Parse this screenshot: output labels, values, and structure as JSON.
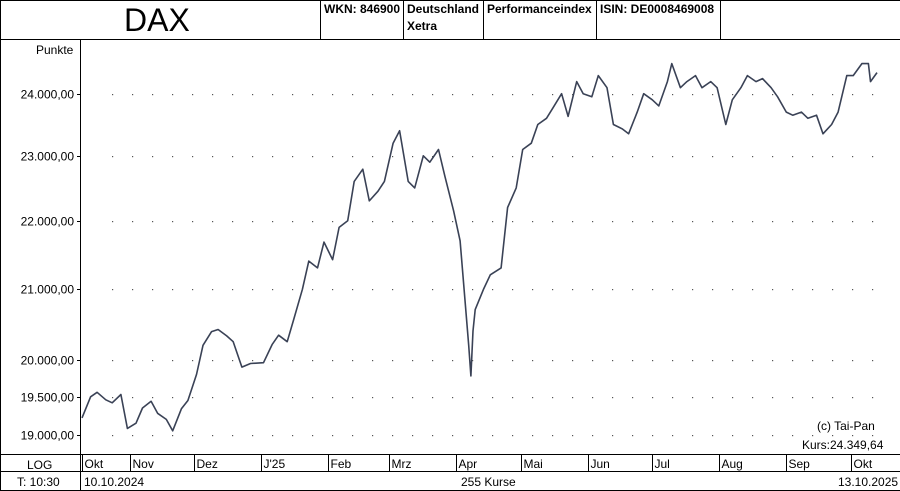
{
  "header": {
    "title": "DAX",
    "wkn": "WKN: 846900",
    "exchange_line1": "Deutschland",
    "exchange_line2": "Xetra",
    "index_type": "Performanceindex",
    "isin": "ISIN: DE0008469008"
  },
  "footer": {
    "scale": "LOG",
    "time": "T: 10:30",
    "start_date": "10.10.2024",
    "count": "255 Kurse",
    "end_date": "13.10.2025"
  },
  "annotations": {
    "copyright": "(c) Tai-Pan",
    "last_price": "Kurs:24.349,64"
  },
  "colors": {
    "line": "#3a4256",
    "grid": "#555555",
    "frame": "#000000"
  },
  "chart_data": {
    "type": "line",
    "title": "DAX",
    "ylabel": "Punkte",
    "yscale": "log",
    "ylim": [
      18750,
      24900
    ],
    "grid": true,
    "y_ticks": [
      19000,
      19500,
      20000,
      21000,
      22000,
      23000,
      24000
    ],
    "y_tick_labels": [
      "19.000,00",
      "19.500,00",
      "20.000,00",
      "21.000,00",
      "22.000,00",
      "23.000,00",
      "24.000,00"
    ],
    "x_start": "2024-10-10",
    "x_end": "2025-10-13",
    "x_ticks": [
      "2024-10-01",
      "2024-11-01",
      "2024-12-01",
      "2025-01-01",
      "2025-02-01",
      "2025-03-01",
      "2025-04-01",
      "2025-05-01",
      "2025-06-01",
      "2025-07-01",
      "2025-08-01",
      "2025-09-01",
      "2025-10-01"
    ],
    "x_tick_labels": [
      "Okt",
      "Nov",
      "Dez",
      "J'25",
      "Feb",
      "Mrz",
      "Apr",
      "Mai",
      "Jun",
      "Jul",
      "Aug",
      "Sep",
      "Okt"
    ],
    "series": [
      {
        "points": [
          [
            "2024-10-10",
            19220
          ],
          [
            "2024-10-14",
            19500
          ],
          [
            "2024-10-17",
            19560
          ],
          [
            "2024-10-21",
            19460
          ],
          [
            "2024-10-24",
            19420
          ],
          [
            "2024-10-28",
            19530
          ],
          [
            "2024-10-31",
            19080
          ],
          [
            "2024-11-04",
            19150
          ],
          [
            "2024-11-07",
            19350
          ],
          [
            "2024-11-11",
            19440
          ],
          [
            "2024-11-14",
            19280
          ],
          [
            "2024-11-18",
            19200
          ],
          [
            "2024-11-21",
            19050
          ],
          [
            "2024-11-25",
            19340
          ],
          [
            "2024-11-28",
            19450
          ],
          [
            "2024-12-02",
            19800
          ],
          [
            "2024-12-05",
            20200
          ],
          [
            "2024-12-09",
            20390
          ],
          [
            "2024-12-12",
            20420
          ],
          [
            "2024-12-16",
            20330
          ],
          [
            "2024-12-19",
            20250
          ],
          [
            "2024-12-23",
            19900
          ],
          [
            "2024-12-27",
            19950
          ],
          [
            "2025-01-02",
            19960
          ],
          [
            "2025-01-06",
            20210
          ],
          [
            "2025-01-09",
            20340
          ],
          [
            "2025-01-13",
            20250
          ],
          [
            "2025-01-16",
            20560
          ],
          [
            "2025-01-20",
            20990
          ],
          [
            "2025-01-23",
            21400
          ],
          [
            "2025-01-27",
            21300
          ],
          [
            "2025-01-30",
            21680
          ],
          [
            "2025-02-03",
            21420
          ],
          [
            "2025-02-06",
            21900
          ],
          [
            "2025-02-10",
            22000
          ],
          [
            "2025-02-13",
            22600
          ],
          [
            "2025-02-17",
            22790
          ],
          [
            "2025-02-20",
            22300
          ],
          [
            "2025-02-24",
            22450
          ],
          [
            "2025-02-27",
            22600
          ],
          [
            "2025-03-03",
            23200
          ],
          [
            "2025-03-06",
            23400
          ],
          [
            "2025-03-10",
            22600
          ],
          [
            "2025-03-13",
            22500
          ],
          [
            "2025-03-17",
            23000
          ],
          [
            "2025-03-20",
            22900
          ],
          [
            "2025-03-24",
            23100
          ],
          [
            "2025-03-27",
            22680
          ],
          [
            "2025-03-31",
            22150
          ],
          [
            "2025-04-03",
            21700
          ],
          [
            "2025-04-07",
            20200
          ],
          [
            "2025-04-08",
            19780
          ],
          [
            "2025-04-09",
            20400
          ],
          [
            "2025-04-10",
            20700
          ],
          [
            "2025-04-14",
            21000
          ],
          [
            "2025-04-17",
            21200
          ],
          [
            "2025-04-22",
            21300
          ],
          [
            "2025-04-25",
            22200
          ],
          [
            "2025-04-29",
            22500
          ],
          [
            "2025-05-02",
            23100
          ],
          [
            "2025-05-06",
            23200
          ],
          [
            "2025-05-09",
            23500
          ],
          [
            "2025-05-13",
            23600
          ],
          [
            "2025-05-16",
            23770
          ],
          [
            "2025-05-20",
            24000
          ],
          [
            "2025-05-23",
            23630
          ],
          [
            "2025-05-27",
            24200
          ],
          [
            "2025-05-30",
            24000
          ],
          [
            "2025-06-03",
            23950
          ],
          [
            "2025-06-06",
            24300
          ],
          [
            "2025-06-10",
            24100
          ],
          [
            "2025-06-13",
            23500
          ],
          [
            "2025-06-17",
            23430
          ],
          [
            "2025-06-20",
            23350
          ],
          [
            "2025-06-24",
            23700
          ],
          [
            "2025-06-27",
            24000
          ],
          [
            "2025-07-01",
            23900
          ],
          [
            "2025-07-04",
            23800
          ],
          [
            "2025-07-08",
            24200
          ],
          [
            "2025-07-10",
            24500
          ],
          [
            "2025-07-14",
            24100
          ],
          [
            "2025-07-17",
            24200
          ],
          [
            "2025-07-21",
            24300
          ],
          [
            "2025-07-24",
            24100
          ],
          [
            "2025-07-28",
            24200
          ],
          [
            "2025-07-31",
            24100
          ],
          [
            "2025-08-04",
            23500
          ],
          [
            "2025-08-07",
            23900
          ],
          [
            "2025-08-11",
            24100
          ],
          [
            "2025-08-14",
            24300
          ],
          [
            "2025-08-18",
            24200
          ],
          [
            "2025-08-21",
            24250
          ],
          [
            "2025-08-25",
            24100
          ],
          [
            "2025-08-28",
            23950
          ],
          [
            "2025-09-01",
            23700
          ],
          [
            "2025-09-04",
            23650
          ],
          [
            "2025-09-08",
            23700
          ],
          [
            "2025-09-11",
            23600
          ],
          [
            "2025-09-15",
            23650
          ],
          [
            "2025-09-18",
            23350
          ],
          [
            "2025-09-22",
            23500
          ],
          [
            "2025-09-25",
            23700
          ],
          [
            "2025-09-29",
            24300
          ],
          [
            "2025-10-02",
            24300
          ],
          [
            "2025-10-06",
            24500
          ],
          [
            "2025-10-09",
            24500
          ],
          [
            "2025-10-10",
            24200
          ],
          [
            "2025-10-13",
            24349.64
          ]
        ]
      }
    ]
  }
}
